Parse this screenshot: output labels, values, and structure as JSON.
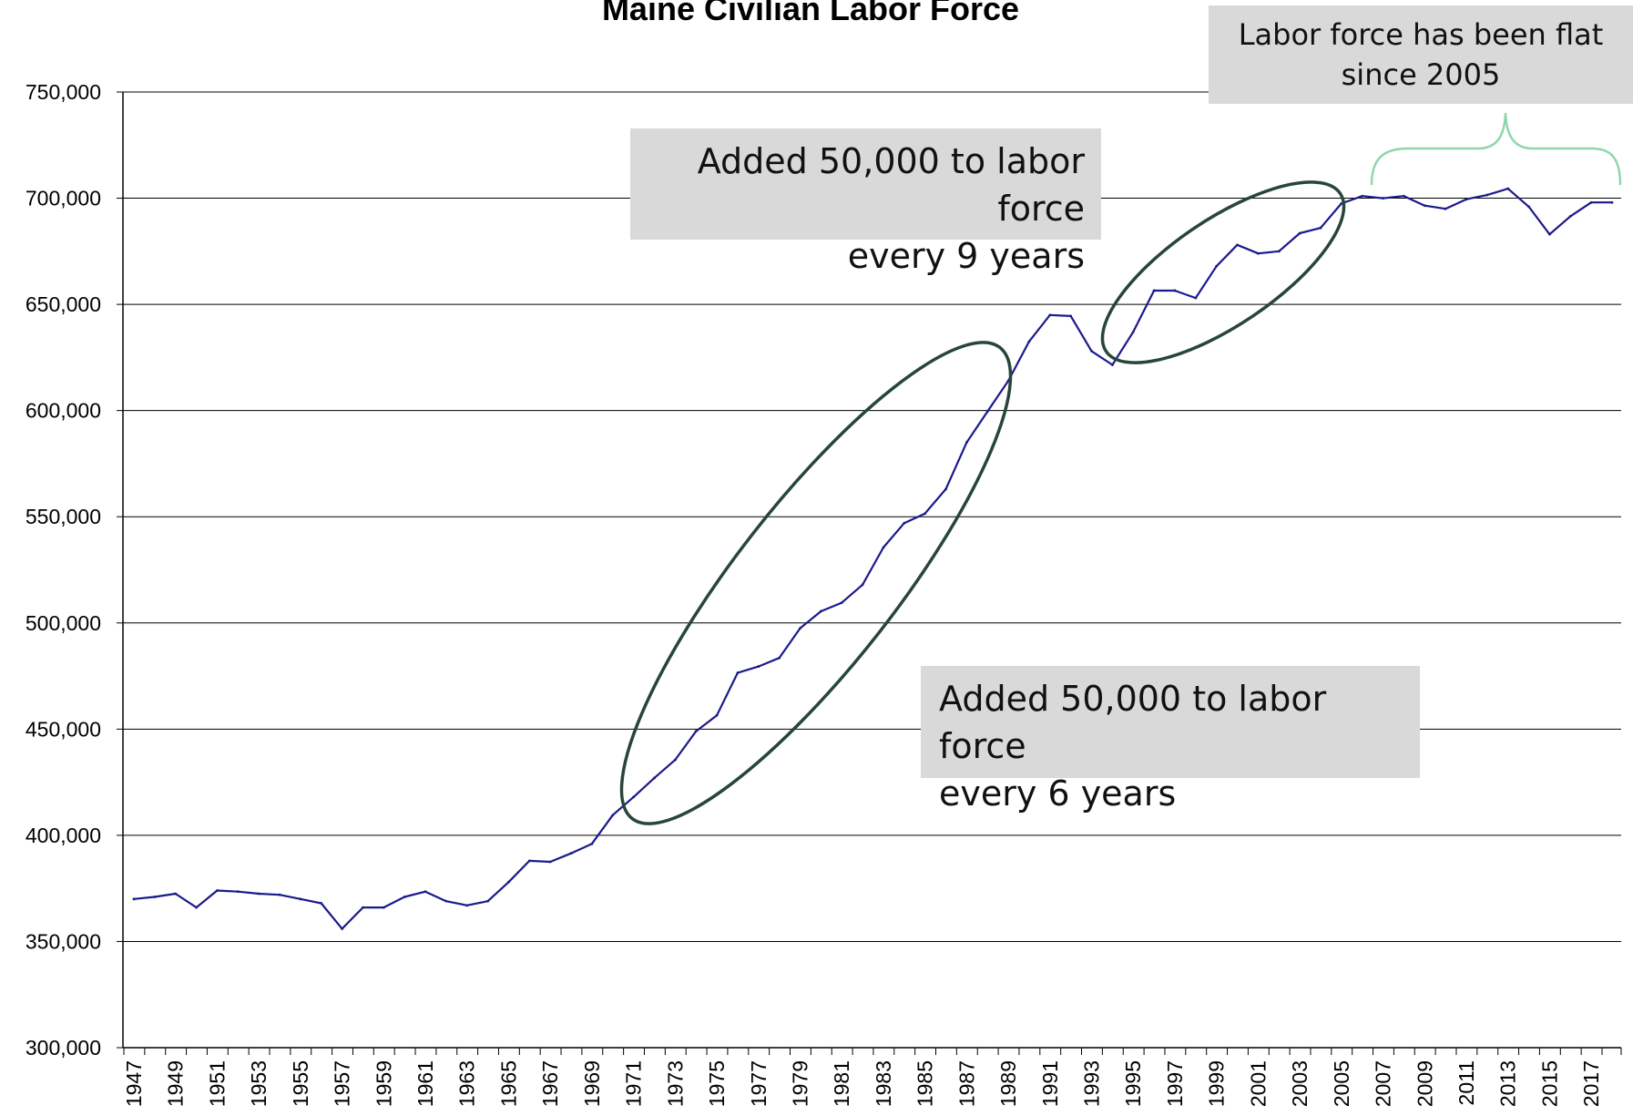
{
  "chart_data": {
    "type": "line",
    "title": "Maine Civilian Labor Force",
    "xlabel": "",
    "ylabel": "",
    "ylim": [
      300000,
      750000
    ],
    "yticks": [
      "300,000",
      "350,000",
      "400,000",
      "450,000",
      "500,000",
      "550,000",
      "600,000",
      "650,000",
      "700,000",
      "750,000"
    ],
    "ytick_values": [
      300000,
      350000,
      400000,
      450000,
      500000,
      550000,
      600000,
      650000,
      700000,
      750000
    ],
    "xlim": [
      1947,
      2018
    ],
    "xtick_labels": [
      "1947",
      "1949",
      "1951",
      "1953",
      "1955",
      "1957",
      "1959",
      "1961",
      "1963",
      "1965",
      "1967",
      "1969",
      "1971",
      "1973",
      "1975",
      "1977",
      "1979",
      "1981",
      "1983",
      "1985",
      "1987",
      "1989",
      "1991",
      "1993",
      "1995",
      "1997",
      "1999",
      "2001",
      "2003",
      "2005",
      "2007",
      "2009",
      "2011",
      "2013",
      "2015",
      "2017"
    ],
    "grid": true,
    "line_color": "#1a1a8c",
    "x": [
      1947,
      1948,
      1949,
      1950,
      1951,
      1952,
      1953,
      1954,
      1955,
      1956,
      1957,
      1958,
      1959,
      1960,
      1961,
      1962,
      1963,
      1964,
      1965,
      1966,
      1967,
      1968,
      1969,
      1970,
      1971,
      1972,
      1973,
      1974,
      1975,
      1976,
      1977,
      1978,
      1979,
      1980,
      1981,
      1982,
      1983,
      1984,
      1985,
      1986,
      1987,
      1988,
      1989,
      1990,
      1991,
      1992,
      1993,
      1994,
      1995,
      1996,
      1997,
      1998,
      1999,
      2000,
      2001,
      2002,
      2003,
      2004,
      2005,
      2006,
      2007,
      2008,
      2009,
      2010,
      2011,
      2012,
      2013,
      2014,
      2015,
      2016,
      2017,
      2018
    ],
    "y": [
      370000,
      371000,
      372500,
      366000,
      374000,
      373500,
      372500,
      372000,
      370000,
      368000,
      356000,
      366000,
      366000,
      371000,
      373500,
      369000,
      367000,
      369000,
      378000,
      388000,
      387500,
      391500,
      396000,
      409500,
      418000,
      427000,
      435500,
      449000,
      456500,
      476500,
      479500,
      483500,
      497500,
      505500,
      509500,
      518000,
      535500,
      547000,
      551500,
      563000,
      585000,
      599500,
      614000,
      632500,
      645000,
      644500,
      628000,
      621500,
      637000,
      656500,
      656500,
      653000,
      668000,
      678000,
      674000,
      675000,
      683500,
      686000,
      697500,
      701000,
      700000,
      701000,
      696500,
      695000,
      699500,
      701500,
      704500,
      696000,
      683000,
      691500,
      698000,
      698000
    ]
  },
  "annotations": {
    "flat": {
      "line1": "Labor force has been flat",
      "line2": "since 2005"
    },
    "nine": {
      "line1": "Added 50,000 to labor force",
      "line2": "every 9 years"
    },
    "six": {
      "line1": "Added 50,000 to labor force",
      "line2": "every 6 years"
    }
  },
  "colors": {
    "ellipse": "#27463b",
    "brace": "#8fd6ab",
    "gridline": "#000000",
    "callout_bg": "#d9d9d9"
  }
}
